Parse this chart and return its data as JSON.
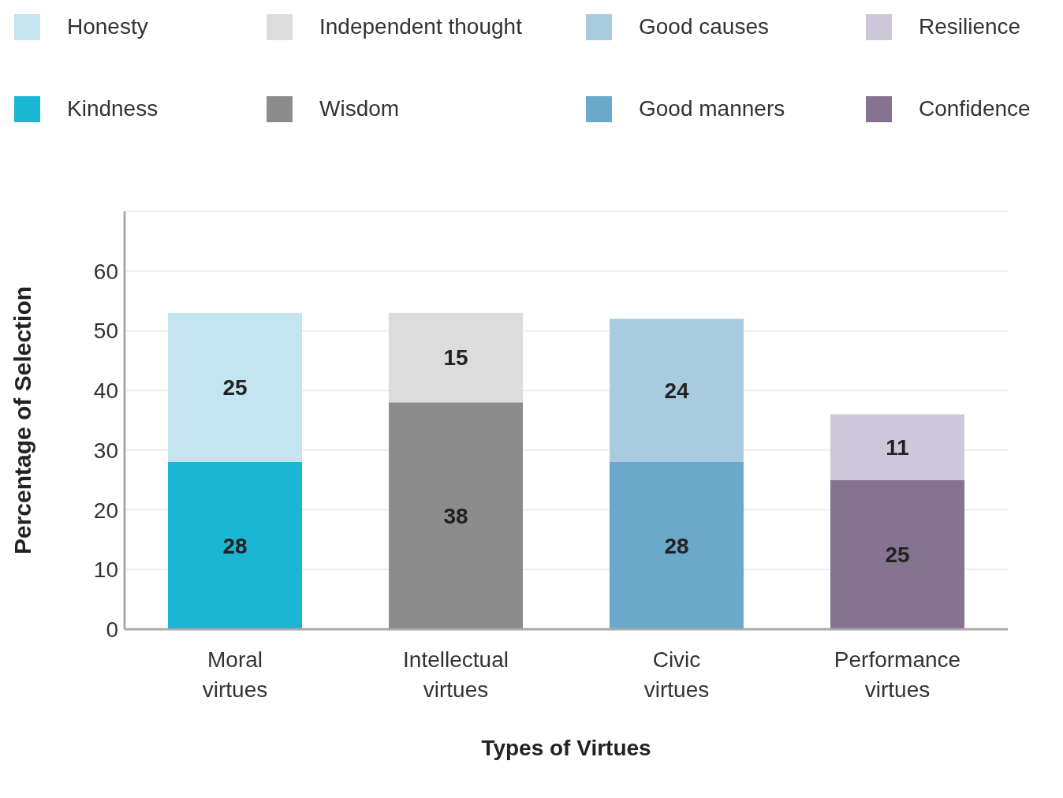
{
  "chart_data": {
    "type": "bar",
    "stacked": true,
    "xlabel": "Types of Virtues",
    "ylabel": "Percentage of Selection",
    "categories": [
      "Moral virtues",
      "Intellectual virtues",
      "Civic virtues",
      "Performance virtues"
    ],
    "series": [
      {
        "name": "Kindness",
        "color": "#1bb6d3",
        "values": [
          28,
          null,
          null,
          null
        ]
      },
      {
        "name": "Honesty",
        "color": "#c4e4ef",
        "values": [
          25,
          null,
          null,
          null
        ]
      },
      {
        "name": "Wisdom",
        "color": "#8c8c8c",
        "values": [
          null,
          38,
          null,
          null
        ]
      },
      {
        "name": "Independent thought",
        "color": "#dcdcdc",
        "values": [
          null,
          15,
          null,
          null
        ]
      },
      {
        "name": "Good manners",
        "color": "#6aa9c9",
        "values": [
          null,
          null,
          28,
          null
        ]
      },
      {
        "name": "Good causes",
        "color": "#a8cbe0",
        "values": [
          null,
          null,
          24,
          null
        ]
      },
      {
        "name": "Confidence",
        "color": "#85738f",
        "values": [
          null,
          null,
          null,
          25
        ]
      },
      {
        "name": "Resilience",
        "color": "#cdc7d9",
        "values": [
          null,
          null,
          null,
          11
        ]
      }
    ],
    "ylim": [
      0,
      70
    ],
    "yticks": [
      0,
      10,
      20,
      30,
      40,
      50,
      60
    ],
    "grid": "y",
    "legend": "top",
    "data_labels": true
  }
}
